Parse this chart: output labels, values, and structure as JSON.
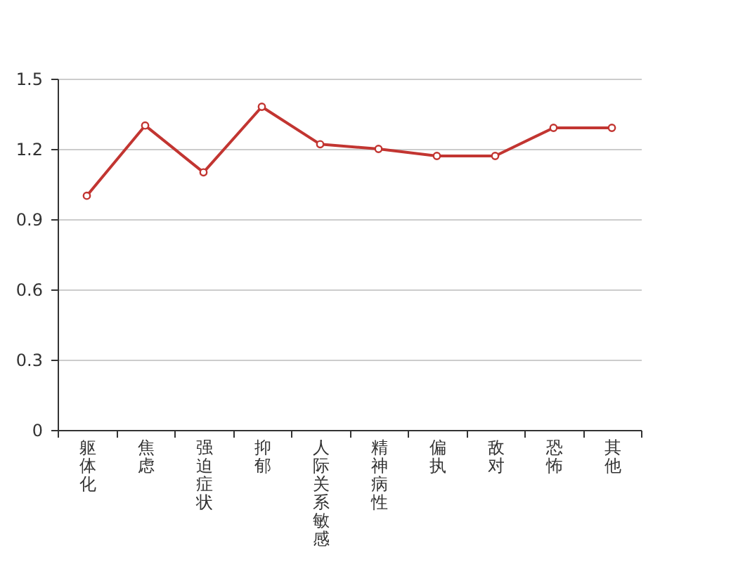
{
  "chart_data": {
    "type": "line",
    "categories": [
      "躯体化",
      "焦虑",
      "强迫症状",
      "抑郁",
      "人际关系敏感",
      "精神病性",
      "偏执",
      "敌对",
      "恐怖",
      "其他"
    ],
    "series": [
      {
        "color": "#c23531",
        "values": [
          1.0,
          1.3,
          1.1,
          1.38,
          1.22,
          1.2,
          1.17,
          1.17,
          1.29,
          1.29
        ]
      }
    ],
    "ylim": [
      0,
      1.5
    ],
    "yticks": [
      0,
      0.3,
      0.6,
      0.9,
      1.2,
      1.5
    ],
    "grid": "y",
    "marker": "circle",
    "line_style": "solid",
    "legend": false
  }
}
